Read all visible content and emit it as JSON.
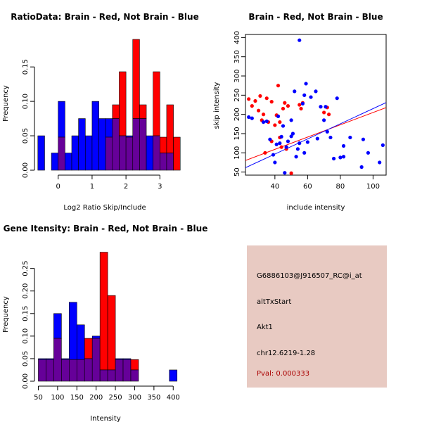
{
  "colors": {
    "brain": "#ff0000",
    "not_brain": "#0000ff",
    "overlap": "#660099",
    "info_bg": "#e8cac2",
    "pval": "#aa0000"
  },
  "chart_data": [
    {
      "type": "histogram",
      "title": "RatioData: Brain - Red, Not Brain - Blue",
      "xlabel": "Log2 Ratio Skip/Include",
      "ylabel": "Frequency",
      "xlim": [
        -0.7,
        3.45
      ],
      "ylim": [
        0,
        0.19
      ],
      "xticks": [
        0,
        1,
        2,
        3
      ],
      "yticks": [
        "0.00",
        "0.05",
        "0.10",
        "0.15"
      ],
      "bin_start": -0.6,
      "bin_width": 0.2,
      "red": [
        0,
        0,
        0,
        0.048,
        0,
        0,
        0,
        0,
        0,
        0,
        0.048,
        0.095,
        0.143,
        0.048,
        0.19,
        0.095,
        0,
        0.143,
        0.048,
        0.095,
        0.048
      ],
      "blue": [
        0.05,
        0,
        0.025,
        0.1,
        0.025,
        0.05,
        0.075,
        0.05,
        0.1,
        0.075,
        0.075,
        0.075,
        0.05,
        0.05,
        0.075,
        0.075,
        0.05,
        0.05,
        0.025,
        0.025,
        0
      ]
    },
    {
      "type": "scatter",
      "title": "Brain - Red, Not Brain - Blue",
      "xlabel": "include intensity",
      "ylabel": "skip intensity",
      "xlim": [
        22,
        108
      ],
      "ylim": [
        42,
        408
      ],
      "xticks": [
        40,
        60,
        80,
        100
      ],
      "yticks": [
        50,
        100,
        150,
        200,
        250,
        300,
        350,
        400
      ],
      "red_points": [
        [
          24,
          240
        ],
        [
          26,
          222
        ],
        [
          28,
          235
        ],
        [
          30,
          210
        ],
        [
          31,
          248
        ],
        [
          32,
          185
        ],
        [
          33,
          200
        ],
        [
          35,
          242
        ],
        [
          36,
          180
        ],
        [
          38,
          233
        ],
        [
          40,
          172
        ],
        [
          41,
          198
        ],
        [
          42,
          275
        ],
        [
          43,
          140
        ],
        [
          44,
          115
        ],
        [
          45,
          215
        ],
        [
          46,
          230
        ],
        [
          47,
          110
        ],
        [
          48,
          222
        ],
        [
          50,
          47
        ],
        [
          55,
          225
        ],
        [
          56,
          215
        ],
        [
          57,
          230
        ],
        [
          70,
          205
        ],
        [
          72,
          218
        ],
        [
          73,
          200
        ],
        [
          34,
          100
        ],
        [
          38,
          130
        ],
        [
          43,
          180
        ]
      ],
      "blue_points": [
        [
          24,
          193
        ],
        [
          26,
          190
        ],
        [
          33,
          180
        ],
        [
          35,
          182
        ],
        [
          37,
          135
        ],
        [
          39,
          95
        ],
        [
          40,
          75
        ],
        [
          41,
          122
        ],
        [
          42,
          195
        ],
        [
          43,
          125
        ],
        [
          44,
          142
        ],
        [
          45,
          170
        ],
        [
          46,
          48
        ],
        [
          47,
          115
        ],
        [
          48,
          130
        ],
        [
          50,
          185
        ],
        [
          50,
          143
        ],
        [
          51,
          150
        ],
        [
          52,
          260
        ],
        [
          53,
          90
        ],
        [
          54,
          110
        ],
        [
          55,
          125
        ],
        [
          55,
          393
        ],
        [
          57,
          228
        ],
        [
          58,
          250
        ],
        [
          58,
          100
        ],
        [
          59,
          280
        ],
        [
          60,
          128
        ],
        [
          62,
          245
        ],
        [
          65,
          260
        ],
        [
          66,
          137
        ],
        [
          68,
          220
        ],
        [
          70,
          185
        ],
        [
          71,
          220
        ],
        [
          72,
          155
        ],
        [
          74,
          140
        ],
        [
          76,
          85
        ],
        [
          78,
          242
        ],
        [
          80,
          88
        ],
        [
          82,
          118
        ],
        [
          82,
          90
        ],
        [
          86,
          140
        ],
        [
          93,
          63
        ],
        [
          94,
          135
        ],
        [
          104,
          75
        ],
        [
          106,
          120
        ],
        [
          97,
          100
        ]
      ],
      "red_line": {
        "intercept": 45,
        "slope": 1.6
      },
      "blue_line": {
        "intercept": 18,
        "slope": 1.97
      }
    },
    {
      "type": "histogram",
      "title": "Gene Itensity: Brain - Red, Not Brain - Blue",
      "xlabel": "Intensity",
      "ylabel": "Frequency",
      "xlim": [
        40,
        405
      ],
      "ylim": [
        0,
        0.29
      ],
      "xticks": [
        50,
        100,
        150,
        200,
        250,
        300,
        350,
        400
      ],
      "yticks": [
        "0.00",
        "0.05",
        "0.10",
        "0.15",
        "0.20",
        "0.25"
      ],
      "bin_start": 50,
      "bin_width": 20,
      "red": [
        0.048,
        0.048,
        0.095,
        0.048,
        0.048,
        0.048,
        0.095,
        0.095,
        0.286,
        0.19,
        0.048,
        0.048,
        0.048,
        0,
        0,
        0,
        0,
        0
      ],
      "blue": [
        0.05,
        0.05,
        0.15,
        0.05,
        0.175,
        0.125,
        0.05,
        0.1,
        0.025,
        0.025,
        0.05,
        0.05,
        0.025,
        0,
        0,
        0,
        0,
        0.025
      ]
    }
  ],
  "info_panel": {
    "probe_id": "G6886103@J916507_RC@i_at",
    "event_type": "altTxStart",
    "gene": "Akt1",
    "location": "chr12.6219-1.28",
    "pval": "Pval: 0.000333"
  }
}
